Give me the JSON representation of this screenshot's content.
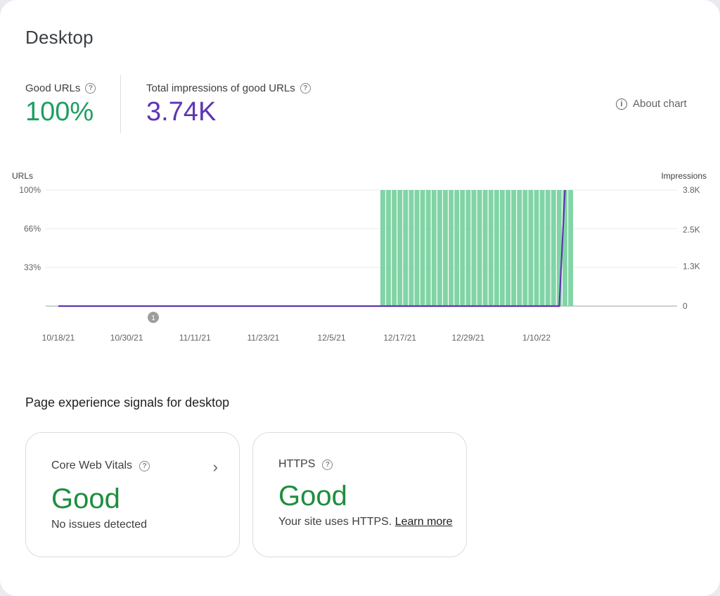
{
  "title": "Desktop",
  "metrics": {
    "good_urls": {
      "label": "Good URLs",
      "value": "100%"
    },
    "impressions": {
      "label": "Total impressions of good URLs",
      "value": "3.74K"
    }
  },
  "about_chart": "About chart",
  "chart_data": {
    "type": "bar",
    "left_axis_label": "URLs",
    "right_axis_label": "Impressions",
    "y_left_ticks": [
      "100%",
      "66%",
      "33%"
    ],
    "y_right_ticks": [
      "3.8K",
      "2.5K",
      "1.3K",
      "0"
    ],
    "x_tick_labels": [
      "10/18/21",
      "10/30/21",
      "11/11/21",
      "11/23/21",
      "12/5/21",
      "12/17/21",
      "12/29/21",
      "1/10/22"
    ],
    "annotation": "1",
    "colors": {
      "bars": "#81d4a5",
      "line": "#5e35b1"
    },
    "series": [
      {
        "name": "Good URLs",
        "type": "bar",
        "start_date": "12/14/21",
        "end_date": "1/16/22",
        "value_percent": 100
      },
      {
        "name": "Impressions",
        "type": "line",
        "points": [
          {
            "x": "10/18/21",
            "y": 0
          },
          {
            "x": "1/14/22",
            "y": 0
          },
          {
            "x": "1/15/22",
            "y": 3800
          }
        ]
      }
    ]
  },
  "section_title": "Page experience signals for desktop",
  "signals": {
    "cwv": {
      "title": "Core Web Vitals",
      "status": "Good",
      "desc": "No issues detected"
    },
    "https": {
      "title": "HTTPS",
      "status": "Good",
      "desc": "Your site uses HTTPS.",
      "link": "Learn more"
    }
  }
}
